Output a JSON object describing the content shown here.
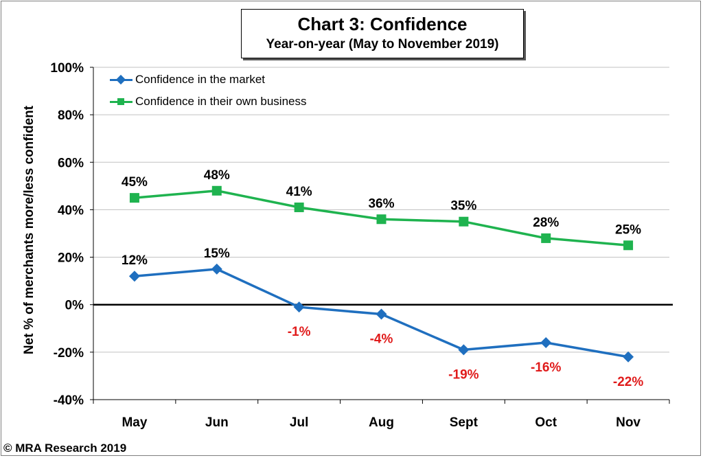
{
  "title": "Chart 3: Confidence",
  "subtitle": "Year-on-year (May to November 2019)",
  "copyright": "© MRA Research 2019",
  "chart_data": {
    "type": "line",
    "categories": [
      "May",
      "Jun",
      "Jul",
      "Aug",
      "Sept",
      "Oct",
      "Nov"
    ],
    "ylabel": "Net % of merchants more/less confident",
    "xlabel": "",
    "ylim": [
      -40,
      100
    ],
    "yticks": [
      -40,
      -20,
      0,
      20,
      40,
      60,
      80,
      100
    ],
    "ytick_labels": [
      "-40%",
      "-20%",
      "0%",
      "20%",
      "40%",
      "60%",
      "80%",
      "100%"
    ],
    "grid": "horizontal",
    "legend_position": "top-left",
    "series": [
      {
        "name": "Confidence in the market",
        "values": [
          12,
          15,
          -1,
          -4,
          -19,
          -16,
          -22
        ],
        "labels": [
          "12%",
          "15%",
          "-1%",
          "-4%",
          "-19%",
          "-16%",
          "-22%"
        ],
        "color": "#1f6fbf",
        "marker": "diamond"
      },
      {
        "name": "Confidence in their own business",
        "values": [
          45,
          48,
          41,
          36,
          35,
          28,
          25
        ],
        "labels": [
          "45%",
          "48%",
          "41%",
          "36%",
          "35%",
          "28%",
          "25%"
        ],
        "color": "#1fb34f",
        "marker": "square"
      }
    ],
    "negative_label_color": "#e01b1b"
  }
}
